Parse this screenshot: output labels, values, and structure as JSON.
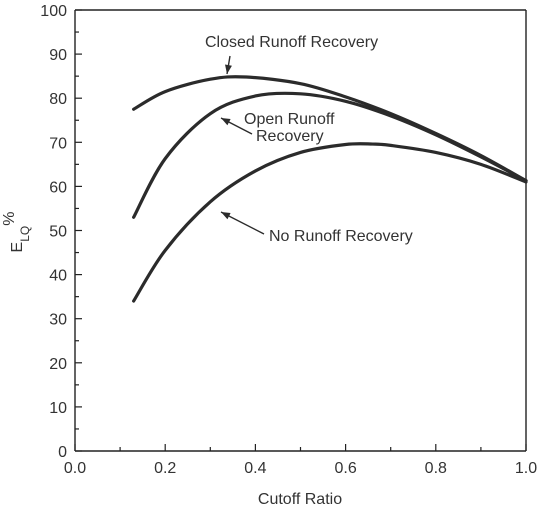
{
  "chart_data": {
    "type": "line",
    "title": "",
    "xlabel": "Cutoff Ratio",
    "ylabel": "E_LQ%",
    "ylabel_main": "E",
    "ylabel_sub": "LQ",
    "ylabel_suffix": "%",
    "xlim": [
      0.0,
      1.0
    ],
    "ylim": [
      0,
      100
    ],
    "x_ticks": [
      0.0,
      0.2,
      0.4,
      0.6,
      0.8,
      1.0
    ],
    "x_tick_labels": [
      "0.0",
      "0.2",
      "0.4",
      "0.6",
      "0.8",
      "1.0"
    ],
    "y_ticks": [
      0,
      10,
      20,
      30,
      40,
      50,
      60,
      70,
      80,
      90,
      100
    ],
    "y_tick_labels": [
      "0",
      "10",
      "20",
      "30",
      "40",
      "50",
      "60",
      "70",
      "80",
      "90",
      "100"
    ],
    "grid": false,
    "legend": "none",
    "series": [
      {
        "name": "Closed Runoff Recovery",
        "x": [
          0.13,
          0.2,
          0.3,
          0.38,
          0.5,
          0.6,
          0.7,
          0.8,
          0.9,
          1.0
        ],
        "y": [
          77.5,
          81.5,
          84.3,
          84.8,
          83.3,
          80.3,
          76.5,
          72.0,
          67.0,
          61.3
        ]
      },
      {
        "name": "Open Runoff Recovery",
        "x": [
          0.13,
          0.2,
          0.3,
          0.4,
          0.5,
          0.6,
          0.7,
          0.8,
          0.9,
          1.0
        ],
        "y": [
          53.0,
          66.3,
          76.5,
          80.5,
          81.0,
          79.3,
          76.0,
          71.7,
          66.7,
          61.3
        ]
      },
      {
        "name": "No Runoff Recovery",
        "x": [
          0.13,
          0.2,
          0.3,
          0.4,
          0.5,
          0.6,
          0.66,
          0.7,
          0.8,
          0.9,
          1.0
        ],
        "y": [
          34.0,
          45.5,
          56.5,
          63.5,
          67.7,
          69.5,
          69.6,
          69.3,
          67.7,
          65.0,
          61.0
        ]
      }
    ],
    "annotations": [
      {
        "text_lines": [
          "Closed Runoff Recovery"
        ],
        "series": 0
      },
      {
        "text_lines": [
          "Open Runoff",
          "Recovery"
        ],
        "series": 1
      },
      {
        "text_lines": [
          "No Runoff Recovery"
        ],
        "series": 2
      }
    ]
  }
}
